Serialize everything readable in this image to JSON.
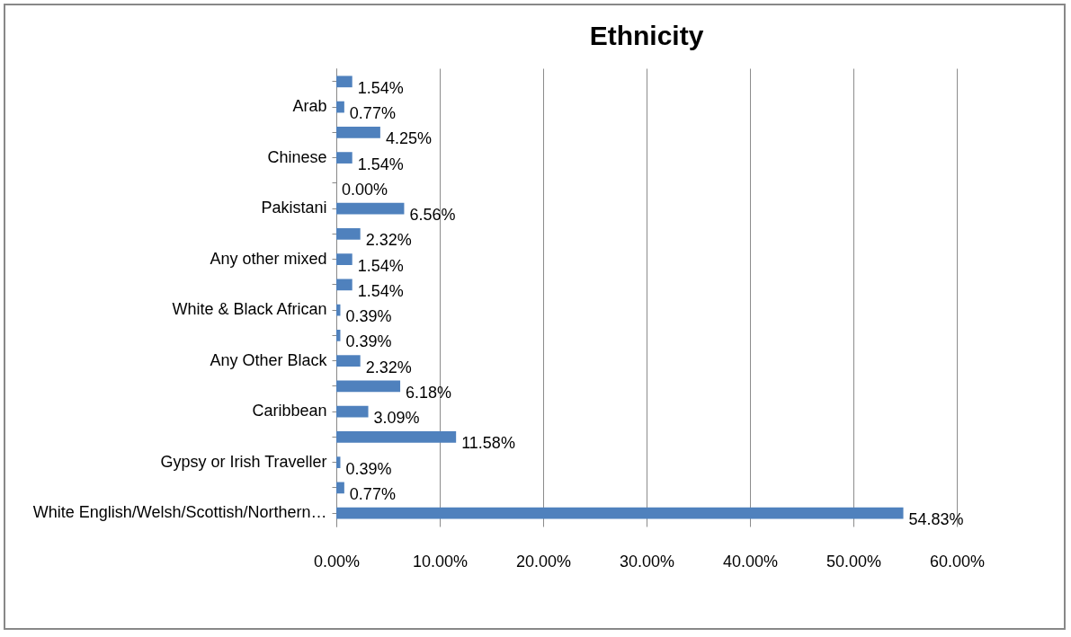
{
  "chart_data": {
    "type": "bar",
    "orientation": "horizontal",
    "title": "Ethnicity",
    "categories": [
      null,
      "Arab",
      null,
      "Chinese",
      null,
      "Pakistani",
      null,
      "Any other mixed",
      null,
      "White & Black African",
      null,
      "Any Other Black",
      null,
      "Caribbean",
      null,
      "Gypsy or Irish Traveller",
      null,
      "White English/Welsh/Scottish/Northern…"
    ],
    "values": [
      1.54,
      0.77,
      4.25,
      1.54,
      0,
      6.56,
      2.32,
      1.54,
      1.54,
      0.39,
      0.39,
      2.32,
      6.18,
      3.09,
      11.58,
      0.39,
      0.77,
      54.83
    ],
    "value_labels": [
      "1.54%",
      "0.77%",
      "4.25%",
      "1.54%",
      "0.00%",
      "6.56%",
      "2.32%",
      "1.54%",
      "1.54%",
      "0.39%",
      "0.39%",
      "2.32%",
      "6.18%",
      "3.09%",
      "11.58%",
      "0.39%",
      "0.77%",
      "54.83%"
    ],
    "color": "#4f81bd",
    "xlim": [
      0,
      60
    ],
    "xticks": [
      {
        "value": 0,
        "label": "0.00%"
      },
      {
        "value": 10,
        "label": "10.00%"
      },
      {
        "value": 20,
        "label": "20.00%"
      },
      {
        "value": 30,
        "label": "30.00%"
      },
      {
        "value": 40,
        "label": "40.00%"
      },
      {
        "value": 50,
        "label": "50.00%"
      },
      {
        "value": 60,
        "label": "60.00%"
      }
    ],
    "grid": "x"
  }
}
